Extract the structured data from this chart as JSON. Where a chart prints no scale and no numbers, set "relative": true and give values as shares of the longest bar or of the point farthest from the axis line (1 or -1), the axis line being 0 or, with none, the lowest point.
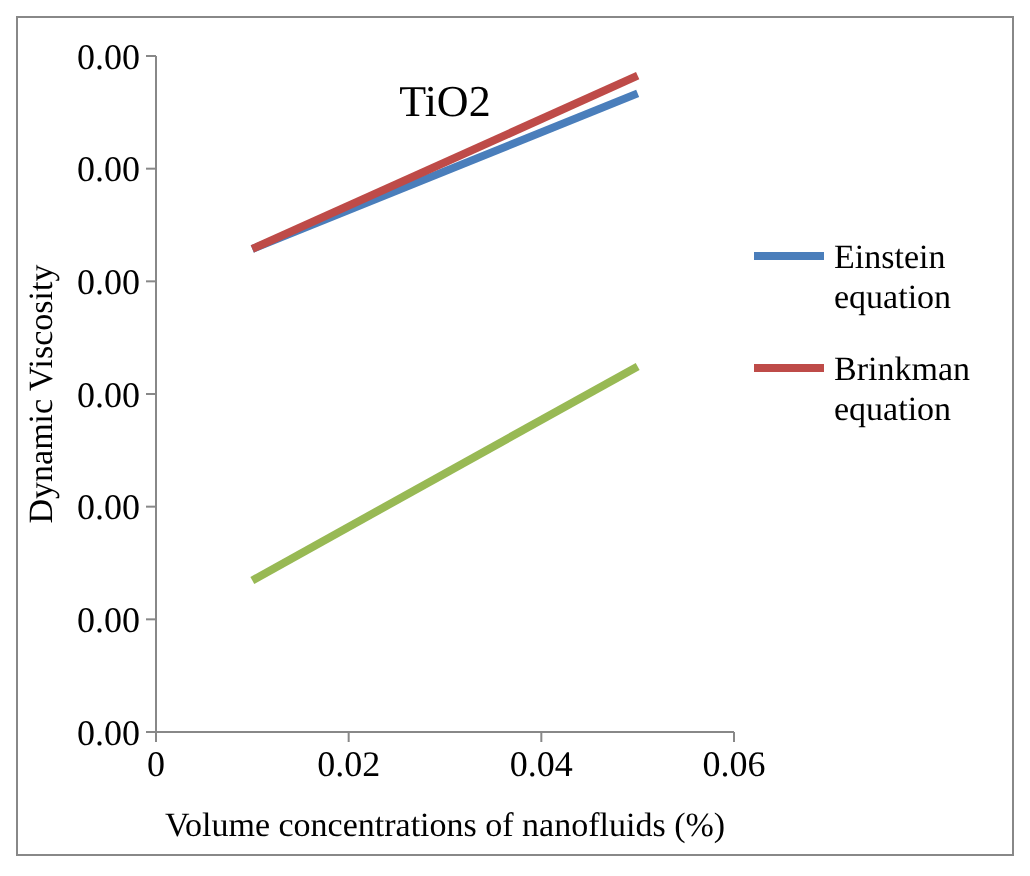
{
  "chart_data": {
    "type": "line",
    "title": "TiO2",
    "xlabel": "Volume concentrations of nanofluids (%)",
    "ylabel": "Dynamic Viscosity",
    "relative": true,
    "x": [
      0.01,
      0.05
    ],
    "series": [
      {
        "name": "Einstein equation",
        "color": "#4a7ebb",
        "values": [
          0.736,
          0.973
        ]
      },
      {
        "name": "Brinkman equation",
        "color": "#be4b48",
        "values": [
          0.736,
          1
        ]
      },
      {
        "color": "#98b954",
        "values": [
          0.231,
          0.557
        ]
      }
    ],
    "xlim": [
      0,
      0.06
    ],
    "xticks": [
      0,
      0.02,
      0.04,
      0.06
    ],
    "annotations": [
      "0.00",
      "0.00",
      "0.00",
      "0.00",
      "0.00",
      "0.00",
      "0.00"
    ],
    "grid": false,
    "legend": "right",
    "marker": "none",
    "line_style": "solid"
  }
}
